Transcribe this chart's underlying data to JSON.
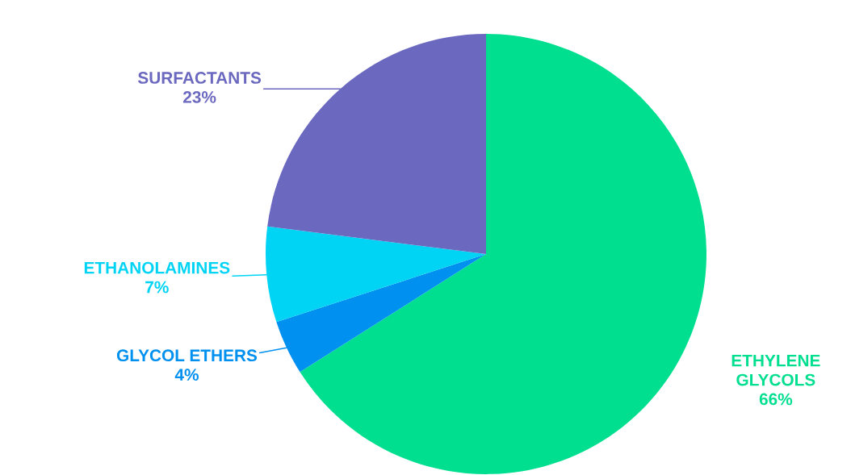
{
  "chart_data": {
    "type": "pie",
    "categories": [
      "ETHYLENE GLYCOLS",
      "GLYCOL ETHERS",
      "ETHANOLAMINES",
      "SURFACTANTS"
    ],
    "values": [
      66,
      4,
      7,
      23
    ],
    "value_labels": [
      "66%",
      "4%",
      "7%",
      "23%"
    ],
    "colors": [
      "#00df90",
      "#0090f0",
      "#00d4f5",
      "#6b68c0"
    ],
    "legend": false
  }
}
